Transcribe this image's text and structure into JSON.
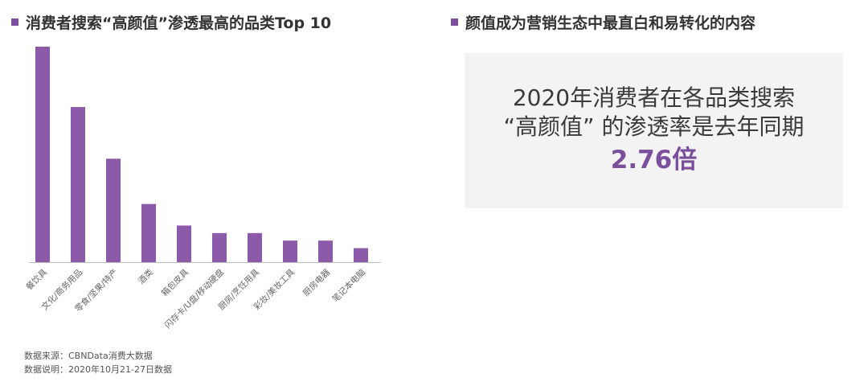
{
  "left_title": "消费者搜索“高颜值”渗透最高的品类Top 10",
  "right_title": "颜值成为营销生态中最直白和易转化的内容",
  "highlight": {
    "line1": "2020年消费者在各品类搜索",
    "line2": "“高颜值” 的渗透率是去年同期",
    "value": "2.76倍"
  },
  "source": {
    "line1": "数据来源：CBNData消费大数据",
    "line2": "数据说明：2020年10月21-27日数据"
  },
  "colors": {
    "bar": "#8b5aa8",
    "accent": "#7b4f9c",
    "panel": "#f3f3f3"
  },
  "chart_data": {
    "type": "bar",
    "title": "消费者搜索“高颜值”渗透最高的品类Top 10",
    "categories": [
      "餐饮具",
      "文化/商务用品",
      "零食/坚果/特产",
      "酒类",
      "箱包皮具",
      "闪存卡/U盘/移动硬盘",
      "厨房/烹饪用具",
      "彩妆/美妆工具",
      "厨房电器",
      "笔记本电脑"
    ],
    "values": [
      100,
      72,
      48,
      27,
      17,
      13.5,
      13.5,
      10,
      10,
      6.5
    ],
    "ylim": [
      0,
      100
    ],
    "xlabel": "",
    "ylabel": "",
    "grid": false,
    "legend": "none"
  }
}
